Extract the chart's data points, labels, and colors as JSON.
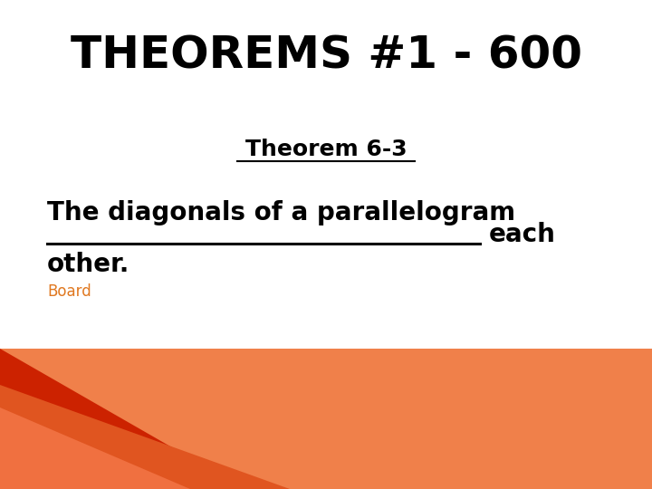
{
  "title": "THEOREMS #1 - 600",
  "subtitle": "Theorem 6-3",
  "line1": "The diagonals of a parallelogram",
  "line2_end": "each",
  "line3": "other.",
  "board_text": "Board",
  "bg_color": "#ffffff",
  "title_color": "#000000",
  "subtitle_color": "#000000",
  "body_color": "#000000",
  "board_color": "#e07820",
  "title_fontsize": 36,
  "subtitle_fontsize": 18,
  "body_fontsize": 20,
  "board_fontsize": 12,
  "orange_bg": "#f0804a",
  "red_shape": "#cc2200",
  "dark_orange": "#e05520",
  "mid_orange": "#f07040"
}
